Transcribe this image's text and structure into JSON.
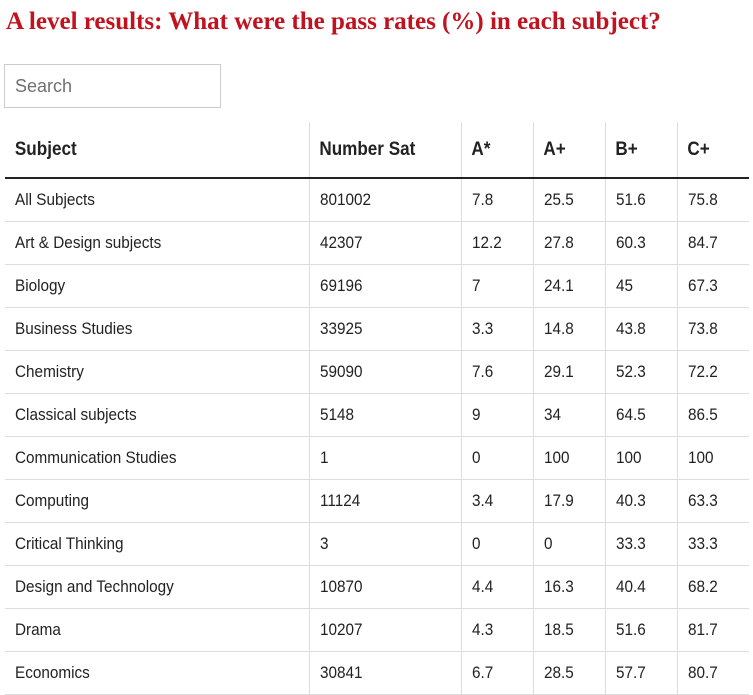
{
  "header": {
    "title": "A level results: What were the pass rates (%) in each subject?"
  },
  "search": {
    "placeholder": "Search"
  },
  "table": {
    "columns": [
      "Subject",
      "Number Sat",
      "A*",
      "A+",
      "B+",
      "C+"
    ],
    "rows": [
      [
        "All Subjects",
        "801002",
        "7.8",
        "25.5",
        "51.6",
        "75.8"
      ],
      [
        "Art & Design subjects",
        "42307",
        "12.2",
        "27.8",
        "60.3",
        "84.7"
      ],
      [
        "Biology",
        "69196",
        "7",
        "24.1",
        "45",
        "67.3"
      ],
      [
        "Business Studies",
        "33925",
        "3.3",
        "14.8",
        "43.8",
        "73.8"
      ],
      [
        "Chemistry",
        "59090",
        "7.6",
        "29.1",
        "52.3",
        "72.2"
      ],
      [
        "Classical subjects",
        "5148",
        "9",
        "34",
        "64.5",
        "86.5"
      ],
      [
        "Communication Studies",
        "1",
        "0",
        "100",
        "100",
        "100"
      ],
      [
        "Computing",
        "11124",
        "3.4",
        "17.9",
        "40.3",
        "63.3"
      ],
      [
        "Critical Thinking",
        "3",
        "0",
        "0",
        "33.3",
        "33.3"
      ],
      [
        "Design and Technology",
        "10870",
        "4.4",
        "16.3",
        "40.4",
        "68.2"
      ],
      [
        "Drama",
        "10207",
        "4.3",
        "18.5",
        "51.6",
        "81.7"
      ],
      [
        "Economics",
        "30841",
        "6.7",
        "28.5",
        "57.7",
        "80.7"
      ]
    ]
  },
  "colors": {
    "title": "#c1121f",
    "text": "#222222",
    "rule": "#dddddd"
  }
}
